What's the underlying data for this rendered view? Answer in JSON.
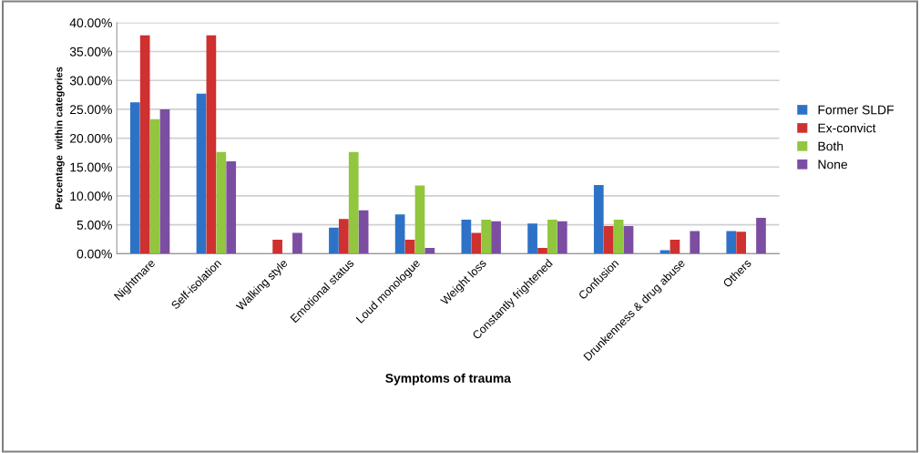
{
  "chart_data": {
    "type": "bar",
    "xlabel": "Symptoms of trauma",
    "ylabel": "Percentage  within categories",
    "categories": [
      "Nightmare",
      "Self-isolation",
      "Walking style",
      "Emotional status",
      "Loud monologue",
      "Weight loss",
      "Constantly frightened",
      "Confusion",
      "Drunkenness & drug abuse",
      "Others"
    ],
    "series": [
      {
        "name": "Former SLDF",
        "color": "#2e72c8",
        "values": [
          26.2,
          27.7,
          0,
          4.5,
          6.8,
          5.9,
          5.2,
          11.9,
          0.6,
          3.9
        ]
      },
      {
        "name": "Ex-convict",
        "color": "#cf3030",
        "values": [
          37.8,
          37.8,
          2.4,
          6.0,
          2.4,
          3.6,
          1.0,
          4.8,
          2.4,
          3.8
        ]
      },
      {
        "name": "Both",
        "color": "#92c63e",
        "values": [
          23.3,
          17.6,
          0,
          17.6,
          11.8,
          5.9,
          5.9,
          5.9,
          0,
          0
        ]
      },
      {
        "name": "None",
        "color": "#7b4ea2",
        "values": [
          25.0,
          16.0,
          3.6,
          7.5,
          1.0,
          5.6,
          5.6,
          4.8,
          3.9,
          6.2
        ]
      }
    ],
    "ylim": [
      0,
      40
    ],
    "yticks": [
      {
        "value": 0,
        "label": "0.00%"
      },
      {
        "value": 5,
        "label": "5.00%"
      },
      {
        "value": 10,
        "label": "10.00%"
      },
      {
        "value": 15,
        "label": "15.00%"
      },
      {
        "value": 20,
        "label": "20.00%"
      },
      {
        "value": 25,
        "label": "25.00%"
      },
      {
        "value": 30,
        "label": "30.00%"
      },
      {
        "value": 35,
        "label": "35.00%"
      },
      {
        "value": 40,
        "label": "40.00%"
      }
    ],
    "grid": "y",
    "legend": "right"
  }
}
